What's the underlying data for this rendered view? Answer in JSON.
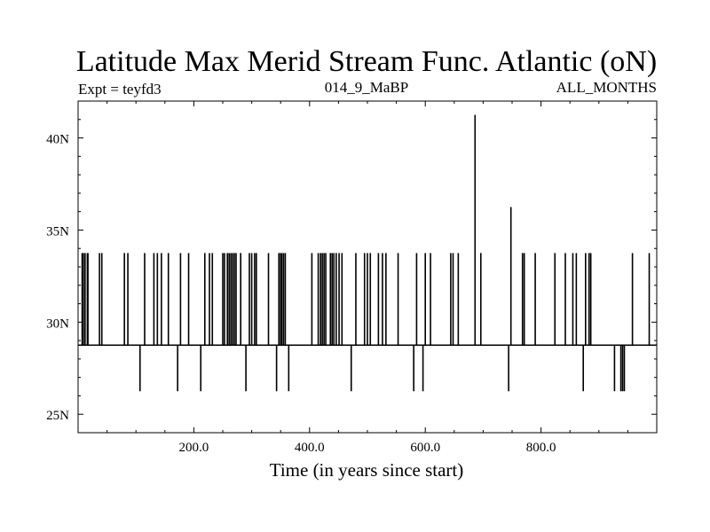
{
  "chart_data": {
    "type": "line",
    "title": "Latitude Max Merid Stream Func. Atlantic (oN)",
    "subtitle_left": "Expt = teyfd3",
    "subtitle_center": "014_9_MaBP",
    "subtitle_right": "ALL_MONTHS",
    "xlabel": "Time (in years since start)",
    "ylabel": "",
    "xlim": [
      0,
      1000
    ],
    "ylim": [
      24,
      42
    ],
    "x_ticks": [
      {
        "value": 200,
        "label": "200.0"
      },
      {
        "value": 400,
        "label": "400.0"
      },
      {
        "value": 600,
        "label": "600.0"
      },
      {
        "value": 800,
        "label": "800.0"
      }
    ],
    "y_ticks": [
      {
        "value": 25,
        "label": "25N"
      },
      {
        "value": 30,
        "label": "30N"
      },
      {
        "value": 35,
        "label": "35N"
      },
      {
        "value": 40,
        "label": "40N"
      }
    ],
    "grid": false,
    "series": [
      {
        "baseline": 28.75,
        "spikes": [
          {
            "x": 7,
            "y": 33.75
          },
          {
            "x": 9,
            "y": 33.75
          },
          {
            "x": 12,
            "y": 33.75
          },
          {
            "x": 16,
            "y": 33.75
          },
          {
            "x": 17,
            "y": 33.75
          },
          {
            "x": 37,
            "y": 33.75
          },
          {
            "x": 41,
            "y": 33.75
          },
          {
            "x": 80,
            "y": 33.75
          },
          {
            "x": 86,
            "y": 33.75
          },
          {
            "x": 107,
            "y": 26.25
          },
          {
            "x": 115,
            "y": 33.75
          },
          {
            "x": 131,
            "y": 33.75
          },
          {
            "x": 137,
            "y": 33.75
          },
          {
            "x": 144,
            "y": 33.75
          },
          {
            "x": 156,
            "y": 33.75
          },
          {
            "x": 172,
            "y": 26.25
          },
          {
            "x": 177,
            "y": 33.75
          },
          {
            "x": 191,
            "y": 33.75
          },
          {
            "x": 212,
            "y": 26.25
          },
          {
            "x": 219,
            "y": 33.75
          },
          {
            "x": 227,
            "y": 33.75
          },
          {
            "x": 232,
            "y": 33.75
          },
          {
            "x": 250,
            "y": 33.75
          },
          {
            "x": 253,
            "y": 33.75
          },
          {
            "x": 258,
            "y": 33.75
          },
          {
            "x": 261,
            "y": 33.75
          },
          {
            "x": 264,
            "y": 33.75
          },
          {
            "x": 267,
            "y": 33.75
          },
          {
            "x": 270,
            "y": 33.75
          },
          {
            "x": 273,
            "y": 33.75
          },
          {
            "x": 281,
            "y": 33.75
          },
          {
            "x": 290,
            "y": 26.25
          },
          {
            "x": 296,
            "y": 33.75
          },
          {
            "x": 300,
            "y": 33.75
          },
          {
            "x": 305,
            "y": 33.75
          },
          {
            "x": 308,
            "y": 33.75
          },
          {
            "x": 329,
            "y": 33.75
          },
          {
            "x": 343,
            "y": 26.25
          },
          {
            "x": 347,
            "y": 33.75
          },
          {
            "x": 350,
            "y": 33.75
          },
          {
            "x": 352,
            "y": 33.75
          },
          {
            "x": 355,
            "y": 33.75
          },
          {
            "x": 358,
            "y": 33.75
          },
          {
            "x": 364,
            "y": 26.25
          },
          {
            "x": 404,
            "y": 33.75
          },
          {
            "x": 415,
            "y": 33.75
          },
          {
            "x": 419,
            "y": 33.75
          },
          {
            "x": 422,
            "y": 33.75
          },
          {
            "x": 425,
            "y": 33.75
          },
          {
            "x": 428,
            "y": 33.75
          },
          {
            "x": 436,
            "y": 33.75
          },
          {
            "x": 439,
            "y": 33.75
          },
          {
            "x": 442,
            "y": 33.75
          },
          {
            "x": 446,
            "y": 33.75
          },
          {
            "x": 451,
            "y": 33.75
          },
          {
            "x": 456,
            "y": 33.75
          },
          {
            "x": 472,
            "y": 26.25
          },
          {
            "x": 480,
            "y": 33.75
          },
          {
            "x": 495,
            "y": 33.75
          },
          {
            "x": 500,
            "y": 33.75
          },
          {
            "x": 505,
            "y": 33.75
          },
          {
            "x": 519,
            "y": 33.75
          },
          {
            "x": 526,
            "y": 33.75
          },
          {
            "x": 532,
            "y": 33.75
          },
          {
            "x": 553,
            "y": 33.75
          },
          {
            "x": 580,
            "y": 26.25
          },
          {
            "x": 585,
            "y": 33.75
          },
          {
            "x": 596,
            "y": 26.25
          },
          {
            "x": 600,
            "y": 33.75
          },
          {
            "x": 609,
            "y": 33.75
          },
          {
            "x": 644,
            "y": 33.75
          },
          {
            "x": 648,
            "y": 33.75
          },
          {
            "x": 657,
            "y": 33.75
          },
          {
            "x": 686,
            "y": 41.25
          },
          {
            "x": 696,
            "y": 33.75
          },
          {
            "x": 744,
            "y": 26.25
          },
          {
            "x": 748,
            "y": 36.25
          },
          {
            "x": 768,
            "y": 33.75
          },
          {
            "x": 771,
            "y": 33.75
          },
          {
            "x": 790,
            "y": 33.75
          },
          {
            "x": 824,
            "y": 33.75
          },
          {
            "x": 842,
            "y": 33.75
          },
          {
            "x": 855,
            "y": 33.75
          },
          {
            "x": 861,
            "y": 33.75
          },
          {
            "x": 873,
            "y": 26.25
          },
          {
            "x": 877,
            "y": 33.75
          },
          {
            "x": 883,
            "y": 33.75
          },
          {
            "x": 886,
            "y": 33.75
          },
          {
            "x": 927,
            "y": 26.25
          },
          {
            "x": 938,
            "y": 26.25
          },
          {
            "x": 941,
            "y": 26.25
          },
          {
            "x": 944,
            "y": 26.25
          },
          {
            "x": 958,
            "y": 33.75
          },
          {
            "x": 987,
            "y": 33.75
          }
        ]
      }
    ]
  }
}
